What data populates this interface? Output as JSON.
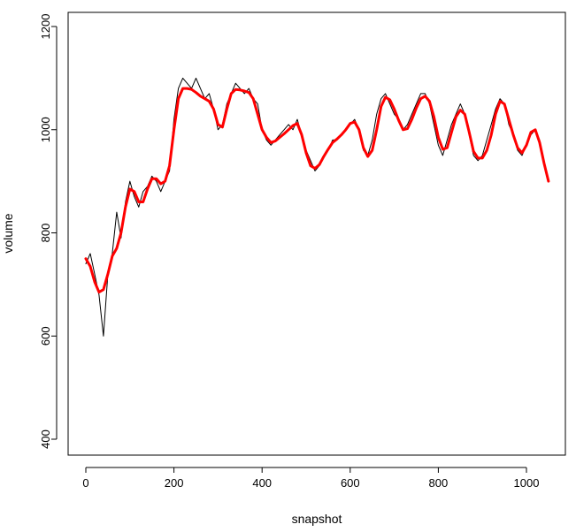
{
  "chart_data": {
    "type": "line",
    "xlabel": "snapshot",
    "ylabel": "volume",
    "xlim": [
      0,
      1050
    ],
    "ylim": [
      380,
      1220
    ],
    "xticks": [
      0,
      200,
      400,
      600,
      800,
      1000
    ],
    "yticks": [
      400,
      600,
      800,
      1000,
      1200
    ],
    "grid": false,
    "series": [
      {
        "kind": "raw",
        "color": "#000000",
        "points": [
          [
            0,
            740
          ],
          [
            10,
            760
          ],
          [
            20,
            720
          ],
          [
            30,
            680
          ],
          [
            40,
            600
          ],
          [
            50,
            720
          ],
          [
            60,
            760
          ],
          [
            70,
            840
          ],
          [
            80,
            790
          ],
          [
            90,
            860
          ],
          [
            100,
            900
          ],
          [
            110,
            870
          ],
          [
            120,
            850
          ],
          [
            130,
            880
          ],
          [
            140,
            890
          ],
          [
            150,
            910
          ],
          [
            160,
            900
          ],
          [
            170,
            880
          ],
          [
            180,
            900
          ],
          [
            190,
            920
          ],
          [
            200,
            1020
          ],
          [
            210,
            1080
          ],
          [
            220,
            1100
          ],
          [
            230,
            1090
          ],
          [
            240,
            1080
          ],
          [
            250,
            1100
          ],
          [
            260,
            1080
          ],
          [
            270,
            1060
          ],
          [
            280,
            1070
          ],
          [
            290,
            1040
          ],
          [
            300,
            1000
          ],
          [
            310,
            1010
          ],
          [
            320,
            1050
          ],
          [
            330,
            1070
          ],
          [
            340,
            1090
          ],
          [
            350,
            1080
          ],
          [
            360,
            1070
          ],
          [
            370,
            1080
          ],
          [
            380,
            1060
          ],
          [
            390,
            1050
          ],
          [
            400,
            1000
          ],
          [
            410,
            980
          ],
          [
            420,
            970
          ],
          [
            430,
            980
          ],
          [
            440,
            990
          ],
          [
            450,
            1000
          ],
          [
            460,
            1010
          ],
          [
            470,
            1000
          ],
          [
            480,
            1020
          ],
          [
            490,
            990
          ],
          [
            500,
            960
          ],
          [
            510,
            940
          ],
          [
            520,
            920
          ],
          [
            530,
            930
          ],
          [
            540,
            950
          ],
          [
            550,
            960
          ],
          [
            560,
            980
          ],
          [
            570,
            980
          ],
          [
            580,
            990
          ],
          [
            590,
            1000
          ],
          [
            600,
            1010
          ],
          [
            610,
            1020
          ],
          [
            620,
            1000
          ],
          [
            630,
            960
          ],
          [
            640,
            950
          ],
          [
            650,
            980
          ],
          [
            660,
            1030
          ],
          [
            670,
            1060
          ],
          [
            680,
            1070
          ],
          [
            690,
            1050
          ],
          [
            700,
            1030
          ],
          [
            710,
            1020
          ],
          [
            720,
            1000
          ],
          [
            730,
            1010
          ],
          [
            740,
            1030
          ],
          [
            750,
            1050
          ],
          [
            760,
            1070
          ],
          [
            770,
            1070
          ],
          [
            780,
            1050
          ],
          [
            790,
            1010
          ],
          [
            800,
            970
          ],
          [
            810,
            950
          ],
          [
            820,
            980
          ],
          [
            830,
            1010
          ],
          [
            840,
            1030
          ],
          [
            850,
            1050
          ],
          [
            860,
            1030
          ],
          [
            870,
            990
          ],
          [
            880,
            950
          ],
          [
            890,
            940
          ],
          [
            900,
            950
          ],
          [
            910,
            980
          ],
          [
            920,
            1010
          ],
          [
            930,
            1040
          ],
          [
            940,
            1060
          ],
          [
            950,
            1050
          ],
          [
            960,
            1010
          ],
          [
            970,
            990
          ],
          [
            980,
            960
          ],
          [
            990,
            950
          ],
          [
            1000,
            970
          ],
          [
            1010,
            990
          ],
          [
            1020,
            1000
          ],
          [
            1030,
            980
          ],
          [
            1040,
            940
          ],
          [
            1050,
            900
          ]
        ]
      },
      {
        "kind": "smooth",
        "color": "#ff0000",
        "points": [
          [
            0,
            750
          ],
          [
            10,
            735
          ],
          [
            20,
            705
          ],
          [
            30,
            685
          ],
          [
            40,
            690
          ],
          [
            50,
            720
          ],
          [
            60,
            755
          ],
          [
            70,
            770
          ],
          [
            80,
            800
          ],
          [
            90,
            850
          ],
          [
            100,
            885
          ],
          [
            110,
            880
          ],
          [
            120,
            860
          ],
          [
            130,
            860
          ],
          [
            140,
            885
          ],
          [
            150,
            905
          ],
          [
            160,
            905
          ],
          [
            170,
            895
          ],
          [
            180,
            900
          ],
          [
            190,
            930
          ],
          [
            200,
            1000
          ],
          [
            210,
            1060
          ],
          [
            220,
            1080
          ],
          [
            230,
            1080
          ],
          [
            240,
            1078
          ],
          [
            250,
            1072
          ],
          [
            260,
            1065
          ],
          [
            270,
            1060
          ],
          [
            280,
            1055
          ],
          [
            290,
            1040
          ],
          [
            300,
            1010
          ],
          [
            310,
            1005
          ],
          [
            320,
            1040
          ],
          [
            330,
            1070
          ],
          [
            340,
            1078
          ],
          [
            350,
            1077
          ],
          [
            360,
            1075
          ],
          [
            370,
            1072
          ],
          [
            380,
            1060
          ],
          [
            390,
            1030
          ],
          [
            400,
            1000
          ],
          [
            410,
            985
          ],
          [
            420,
            975
          ],
          [
            430,
            978
          ],
          [
            440,
            985
          ],
          [
            450,
            992
          ],
          [
            460,
            1000
          ],
          [
            470,
            1008
          ],
          [
            480,
            1012
          ],
          [
            490,
            990
          ],
          [
            500,
            955
          ],
          [
            510,
            930
          ],
          [
            520,
            925
          ],
          [
            530,
            932
          ],
          [
            540,
            948
          ],
          [
            550,
            962
          ],
          [
            560,
            975
          ],
          [
            570,
            982
          ],
          [
            580,
            990
          ],
          [
            590,
            1000
          ],
          [
            600,
            1012
          ],
          [
            610,
            1015
          ],
          [
            620,
            1000
          ],
          [
            630,
            965
          ],
          [
            640,
            948
          ],
          [
            650,
            960
          ],
          [
            660,
            1000
          ],
          [
            670,
            1045
          ],
          [
            680,
            1063
          ],
          [
            690,
            1058
          ],
          [
            700,
            1040
          ],
          [
            710,
            1018
          ],
          [
            720,
            1000
          ],
          [
            730,
            1002
          ],
          [
            740,
            1020
          ],
          [
            750,
            1042
          ],
          [
            760,
            1060
          ],
          [
            770,
            1065
          ],
          [
            780,
            1055
          ],
          [
            790,
            1025
          ],
          [
            800,
            985
          ],
          [
            810,
            962
          ],
          [
            820,
            965
          ],
          [
            830,
            995
          ],
          [
            840,
            1025
          ],
          [
            850,
            1038
          ],
          [
            860,
            1030
          ],
          [
            870,
            995
          ],
          [
            880,
            958
          ],
          [
            890,
            945
          ],
          [
            900,
            945
          ],
          [
            910,
            960
          ],
          [
            920,
            990
          ],
          [
            930,
            1030
          ],
          [
            940,
            1055
          ],
          [
            950,
            1050
          ],
          [
            960,
            1020
          ],
          [
            970,
            990
          ],
          [
            980,
            965
          ],
          [
            990,
            955
          ],
          [
            1000,
            970
          ],
          [
            1010,
            995
          ],
          [
            1020,
            1000
          ],
          [
            1030,
            975
          ],
          [
            1040,
            935
          ],
          [
            1050,
            900
          ]
        ]
      }
    ]
  }
}
